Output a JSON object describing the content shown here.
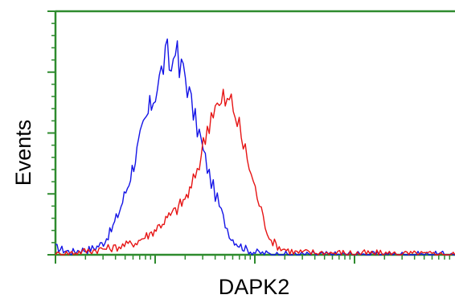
{
  "chart_data": {
    "type": "line",
    "title": "",
    "xlabel": "DAPK2",
    "ylabel": "Events",
    "xscale": "log",
    "xlim": [
      0,
      1
    ],
    "ylim": [
      0,
      1
    ],
    "grid": false,
    "legend": "none",
    "axis_color": "#2e8b2e",
    "series": [
      {
        "color": "#1414e6",
        "x": [
          0.0,
          0.02,
          0.04,
          0.06,
          0.08,
          0.1,
          0.12,
          0.14,
          0.16,
          0.18,
          0.2,
          0.22,
          0.24,
          0.25,
          0.26,
          0.27,
          0.28,
          0.29,
          0.3,
          0.31,
          0.32,
          0.33,
          0.34,
          0.35,
          0.36,
          0.37,
          0.38,
          0.39,
          0.4,
          0.41,
          0.42,
          0.43,
          0.44,
          0.46,
          0.48,
          0.5,
          0.55,
          1.0
        ],
        "y": [
          0.03,
          0.02,
          0.01,
          0.02,
          0.02,
          0.03,
          0.05,
          0.1,
          0.18,
          0.28,
          0.4,
          0.52,
          0.62,
          0.67,
          0.72,
          0.78,
          0.82,
          0.75,
          0.89,
          0.74,
          0.78,
          0.7,
          0.62,
          0.55,
          0.5,
          0.42,
          0.36,
          0.3,
          0.25,
          0.2,
          0.15,
          0.11,
          0.07,
          0.04,
          0.02,
          0.01,
          0.0,
          0.0
        ]
      },
      {
        "color": "#e61414",
        "x": [
          0.0,
          0.05,
          0.1,
          0.15,
          0.2,
          0.22,
          0.24,
          0.26,
          0.28,
          0.3,
          0.32,
          0.34,
          0.35,
          0.36,
          0.37,
          0.38,
          0.39,
          0.4,
          0.41,
          0.42,
          0.43,
          0.44,
          0.45,
          0.46,
          0.47,
          0.48,
          0.49,
          0.5,
          0.51,
          0.52,
          0.53,
          0.54,
          0.56,
          0.6,
          1.0
        ],
        "y": [
          0.0,
          0.01,
          0.02,
          0.03,
          0.05,
          0.07,
          0.09,
          0.12,
          0.15,
          0.18,
          0.22,
          0.27,
          0.33,
          0.38,
          0.45,
          0.52,
          0.58,
          0.62,
          0.6,
          0.64,
          0.62,
          0.63,
          0.58,
          0.52,
          0.45,
          0.4,
          0.33,
          0.27,
          0.21,
          0.15,
          0.1,
          0.06,
          0.03,
          0.01,
          0.0
        ]
      }
    ]
  }
}
